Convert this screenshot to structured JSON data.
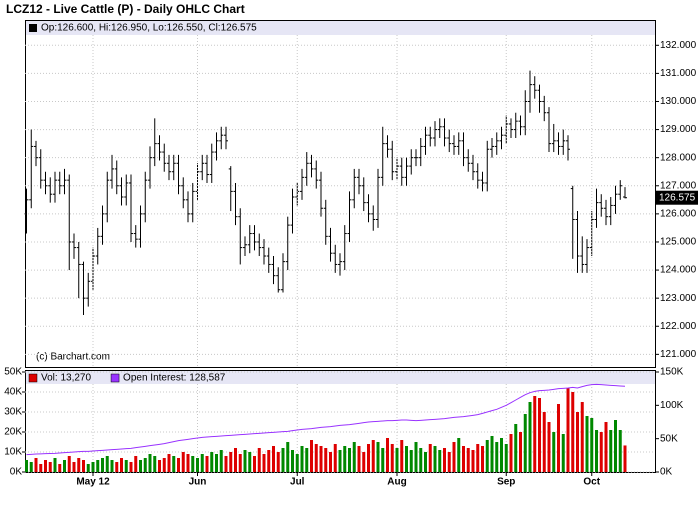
{
  "chart_data": [
    {
      "type": "ohlc",
      "title": "LCZ12 - Live Cattle (P) - Daily OHLC Chart",
      "legend_text": "Op:126.600, Hi:126.950, Lo:126.550, Cl:126.575",
      "credit": "(c) Barchart.com",
      "bar_color": "#000000",
      "grid": true,
      "ylim": [
        120.55,
        132.9
      ],
      "yticks": [
        {
          "value": 121,
          "label": "121.000"
        },
        {
          "value": 122,
          "label": "122.000"
        },
        {
          "value": 123,
          "label": "123.000"
        },
        {
          "value": 124,
          "label": "124.000"
        },
        {
          "value": 125,
          "label": "125.000"
        },
        {
          "value": 126,
          "label": "126.000"
        },
        {
          "value": 127,
          "label": "127.000"
        },
        {
          "value": 128,
          "label": "128.000"
        },
        {
          "value": 129,
          "label": "129.000"
        },
        {
          "value": 130,
          "label": "130.000"
        },
        {
          "value": 131,
          "label": "131.000"
        },
        {
          "value": 132,
          "label": "132.000"
        }
      ],
      "open": [
        126.0,
        126.5,
        128.4,
        128.0,
        127.2,
        127.0,
        126.7,
        127.2,
        127.0,
        127.2,
        125.0,
        124.8,
        124.2,
        123.0,
        123.6,
        124.5,
        125.2,
        126.0,
        127.2,
        127.6,
        127.0,
        126.6,
        127.1,
        125.3,
        125.1,
        126.0,
        127.2,
        128.0,
        128.5,
        128.2,
        127.8,
        127.5,
        127.8,
        127.0,
        126.5,
        126.0,
        126.8,
        127.5,
        127.8,
        127.4,
        128.2,
        128.6,
        128.8,
        127.6,
        126.8,
        125.9,
        124.8,
        124.9,
        125.3,
        125.0,
        124.8,
        124.5,
        124.2,
        123.8,
        123.3,
        124.3,
        125.6,
        126.6,
        126.8,
        127.3,
        127.8,
        127.6,
        127.2,
        126.2,
        125.2,
        124.6,
        124.2,
        124.3,
        125.3,
        126.5,
        127.3,
        127.0,
        126.4,
        126.0,
        125.8,
        127.3,
        128.5,
        128.3,
        127.5,
        127.7,
        127.3,
        127.7,
        128.0,
        128.0,
        128.4,
        128.8,
        128.7,
        129.0,
        129.1,
        128.7,
        128.5,
        128.4,
        128.6,
        128.0,
        127.8,
        127.5,
        127.2,
        127.1,
        128.3,
        128.4,
        128.6,
        128.8,
        129.2,
        129.0,
        129.3,
        129.1,
        130.0,
        130.6,
        130.4,
        130.0,
        129.6,
        128.5,
        128.6,
        128.4,
        128.6,
        126.9,
        125.8,
        124.5,
        124.2,
        124.8,
        125.8,
        126.4,
        126.2,
        125.9,
        126.3,
        126.7,
        126.6
      ],
      "high": [
        126.9,
        129.0,
        128.6,
        128.3,
        127.5,
        127.3,
        127.5,
        127.5,
        127.6,
        127.4,
        125.3,
        125.0,
        124.3,
        123.9,
        124.8,
        125.5,
        126.3,
        127.5,
        128.1,
        127.9,
        127.3,
        127.4,
        127.4,
        125.6,
        126.3,
        127.5,
        128.4,
        129.4,
        128.8,
        128.5,
        128.1,
        128.1,
        128.1,
        127.3,
        126.8,
        127.1,
        127.8,
        128.1,
        128.1,
        128.5,
        128.9,
        129.1,
        129.1,
        127.7,
        127.1,
        126.2,
        125.2,
        125.6,
        125.6,
        125.3,
        125.1,
        124.8,
        124.5,
        124.1,
        124.6,
        125.9,
        126.9,
        127.1,
        127.6,
        128.2,
        128.1,
        127.9,
        127.5,
        126.5,
        125.5,
        124.9,
        124.6,
        125.6,
        126.8,
        127.6,
        127.6,
        127.3,
        126.7,
        126.3,
        127.6,
        129.1,
        128.8,
        128.6,
        128.0,
        128.0,
        128.0,
        128.3,
        128.3,
        128.7,
        129.1,
        129.1,
        129.3,
        129.4,
        129.4,
        129.0,
        128.8,
        128.9,
        128.9,
        128.3,
        128.1,
        127.8,
        127.5,
        128.6,
        128.7,
        128.9,
        129.1,
        129.5,
        129.4,
        129.6,
        129.5,
        130.4,
        131.1,
        130.9,
        130.6,
        130.2,
        129.8,
        129.2,
        128.9,
        129.0,
        128.8,
        127.0,
        126.1,
        125.2,
        125.1,
        126.1,
        126.9,
        126.7,
        126.5,
        126.6,
        127.0,
        127.2,
        126.95
      ],
      "low": [
        125.3,
        126.2,
        127.7,
        126.9,
        126.7,
        126.4,
        126.4,
        126.7,
        126.7,
        124.0,
        124.4,
        123.0,
        122.4,
        122.7,
        123.3,
        124.2,
        124.9,
        125.7,
        126.9,
        126.7,
        126.3,
        126.3,
        125.0,
        124.8,
        124.8,
        125.7,
        126.9,
        127.7,
        127.9,
        127.5,
        127.2,
        127.2,
        126.7,
        126.2,
        125.7,
        125.7,
        126.5,
        127.2,
        127.1,
        127.1,
        127.9,
        128.3,
        128.3,
        126.1,
        125.6,
        124.2,
        124.5,
        124.6,
        124.7,
        124.5,
        124.2,
        123.9,
        123.5,
        123.2,
        123.2,
        124.0,
        125.3,
        126.3,
        126.5,
        127.0,
        127.3,
        126.9,
        125.9,
        124.9,
        124.3,
        123.9,
        123.8,
        124.0,
        125.0,
        126.2,
        126.7,
        126.1,
        125.7,
        125.4,
        125.5,
        127.0,
        128.0,
        127.2,
        127.2,
        127.0,
        127.0,
        127.4,
        127.7,
        127.7,
        128.1,
        128.4,
        128.4,
        128.7,
        128.4,
        128.2,
        128.1,
        128.1,
        127.7,
        127.5,
        127.2,
        126.9,
        126.8,
        126.8,
        128.0,
        128.1,
        128.3,
        128.5,
        128.7,
        128.7,
        128.8,
        128.8,
        129.6,
        130.1,
        129.6,
        129.3,
        128.2,
        128.2,
        128.1,
        128.1,
        127.9,
        124.4,
        123.9,
        123.9,
        123.9,
        124.5,
        125.5,
        125.9,
        125.6,
        125.6,
        126.0,
        126.5,
        126.55
      ],
      "close": [
        126.5,
        128.4,
        128.0,
        127.2,
        127.0,
        126.7,
        127.2,
        127.0,
        127.2,
        125.0,
        124.8,
        124.2,
        123.0,
        123.6,
        124.5,
        125.2,
        126.0,
        127.2,
        127.6,
        127.0,
        126.6,
        127.1,
        125.3,
        125.1,
        126.0,
        127.2,
        128.0,
        128.5,
        128.2,
        127.8,
        127.5,
        127.8,
        127.0,
        126.5,
        126.0,
        126.8,
        127.5,
        127.8,
        127.4,
        128.2,
        128.6,
        128.8,
        128.6,
        126.8,
        125.9,
        124.8,
        124.9,
        125.3,
        125.0,
        124.8,
        124.5,
        124.2,
        123.8,
        123.3,
        124.3,
        125.6,
        126.6,
        126.8,
        127.3,
        127.8,
        127.6,
        127.2,
        126.2,
        125.2,
        124.6,
        124.2,
        124.3,
        125.3,
        126.5,
        127.3,
        127.0,
        126.4,
        126.0,
        125.8,
        127.3,
        128.5,
        128.3,
        127.5,
        127.7,
        127.3,
        127.7,
        128.0,
        128.0,
        128.4,
        128.8,
        128.7,
        129.0,
        129.1,
        128.7,
        128.5,
        128.4,
        128.6,
        128.0,
        127.8,
        127.5,
        127.2,
        127.1,
        128.3,
        128.4,
        128.6,
        128.8,
        129.2,
        129.0,
        129.3,
        129.1,
        130.0,
        130.6,
        130.4,
        130.0,
        129.6,
        128.5,
        128.6,
        128.4,
        128.6,
        128.3,
        125.8,
        124.5,
        124.2,
        124.8,
        125.8,
        126.4,
        126.2,
        125.9,
        126.3,
        126.7,
        127.0,
        126.575
      ]
    },
    {
      "type": "bar",
      "grid": true,
      "categories": [
        null,
        null,
        null,
        null,
        null,
        null,
        null,
        null,
        null,
        null,
        null,
        null,
        null,
        null,
        "May 12",
        null,
        null,
        null,
        null,
        null,
        null,
        null,
        null,
        null,
        null,
        null,
        null,
        null,
        null,
        null,
        null,
        null,
        null,
        null,
        null,
        null,
        "Jun",
        null,
        null,
        null,
        null,
        null,
        null,
        null,
        null,
        null,
        null,
        null,
        null,
        null,
        null,
        null,
        null,
        null,
        null,
        null,
        null,
        "Jul",
        null,
        null,
        null,
        null,
        null,
        null,
        null,
        null,
        null,
        null,
        null,
        null,
        null,
        null,
        null,
        null,
        null,
        null,
        null,
        null,
        "Aug",
        null,
        null,
        null,
        null,
        null,
        null,
        null,
        null,
        null,
        null,
        null,
        null,
        null,
        null,
        null,
        null,
        null,
        null,
        null,
        null,
        null,
        null,
        "Sep",
        null,
        null,
        null,
        null,
        null,
        null,
        null,
        null,
        null,
        null,
        null,
        null,
        null,
        null,
        null,
        null,
        null,
        "Oct",
        null,
        null,
        null,
        null,
        null,
        null,
        null
      ],
      "ylim": [
        0,
        50000
      ],
      "yticks": [
        {
          "value": 0,
          "label": "0K"
        },
        {
          "value": 10000,
          "label": "10K"
        },
        {
          "value": 20000,
          "label": "20K"
        },
        {
          "value": 30000,
          "label": "30K"
        },
        {
          "value": 40000,
          "label": "40K"
        },
        {
          "value": 50000,
          "label": "50K"
        }
      ],
      "y2lim": [
        0,
        150000
      ],
      "y2ticks": [
        {
          "value": 0,
          "label": "0K"
        },
        {
          "value": 50000,
          "label": "50K"
        },
        {
          "value": 100000,
          "label": "100K"
        },
        {
          "value": 150000,
          "label": "150K"
        }
      ],
      "series": [
        {
          "name": "Vol: 13,270",
          "color": "#dd0000",
          "up_color": "#008800",
          "values": [
            6000,
            5000,
            7000,
            4000,
            6000,
            5000,
            7000,
            4000,
            6000,
            8000,
            5000,
            7000,
            6000,
            4000,
            5000,
            6000,
            7000,
            8000,
            6000,
            5000,
            7000,
            6000,
            5000,
            8000,
            6000,
            7000,
            9000,
            8000,
            6000,
            7000,
            9000,
            8000,
            7000,
            10000,
            9000,
            8000,
            7000,
            9000,
            8000,
            10000,
            9000,
            11000,
            8000,
            10000,
            12000,
            9000,
            11000,
            10000,
            8000,
            12000,
            9000,
            11000,
            13000,
            10000,
            12000,
            15000,
            11000,
            9000,
            13000,
            12000,
            16000,
            14000,
            13000,
            12000,
            10000,
            14000,
            11000,
            13000,
            12000,
            15000,
            13000,
            10000,
            14000,
            16000,
            15000,
            12000,
            17000,
            14000,
            12000,
            16000,
            13000,
            11000,
            15000,
            12000,
            10000,
            14000,
            13000,
            11000,
            12000,
            10000,
            15000,
            17000,
            13000,
            12000,
            11000,
            14000,
            13000,
            16000,
            18000,
            15000,
            17000,
            14000,
            19000,
            24000,
            20000,
            29000,
            35000,
            38000,
            37000,
            30000,
            25000,
            20000,
            34000,
            19000,
            42000,
            40000,
            30000,
            35000,
            28000,
            27000,
            21000,
            20000,
            25000,
            21000,
            26000,
            21000,
            13270
          ]
        },
        {
          "name": "Open Interest: 128,587",
          "color": "#9933ff",
          "axis": "y2",
          "values": [
            26000,
            26500,
            27000,
            27200,
            27500,
            27800,
            28000,
            28500,
            29000,
            29500,
            30000,
            30500,
            31000,
            31000,
            31500,
            32000,
            32500,
            33000,
            33500,
            34000,
            34500,
            35000,
            35500,
            36500,
            37500,
            38500,
            39500,
            40500,
            41500,
            42500,
            44000,
            45500,
            47000,
            48000,
            49000,
            50000,
            51000,
            52000,
            52500,
            53000,
            53500,
            54000,
            54500,
            55000,
            55500,
            56000,
            56500,
            57000,
            57500,
            58000,
            58500,
            59000,
            59500,
            60000,
            60500,
            61000,
            62000,
            63000,
            64000,
            64500,
            65000,
            66000,
            67000,
            67500,
            68000,
            69000,
            70000,
            70500,
            71000,
            72000,
            73000,
            74000,
            75000,
            75500,
            76000,
            76500,
            77000,
            77000,
            77500,
            78000,
            78000,
            77500,
            77000,
            77500,
            78000,
            78500,
            79000,
            79500,
            80000,
            81000,
            82000,
            82500,
            83000,
            84000,
            85000,
            86000,
            88000,
            90000,
            92000,
            94000,
            97000,
            100000,
            104000,
            108000,
            112000,
            116000,
            119000,
            121000,
            122000,
            122500,
            123000,
            124000,
            125000,
            125500,
            126000,
            127000,
            126000,
            128000,
            130000,
            131000,
            131500,
            131000,
            130500,
            130000,
            129500,
            129000,
            128587
          ]
        }
      ]
    }
  ]
}
